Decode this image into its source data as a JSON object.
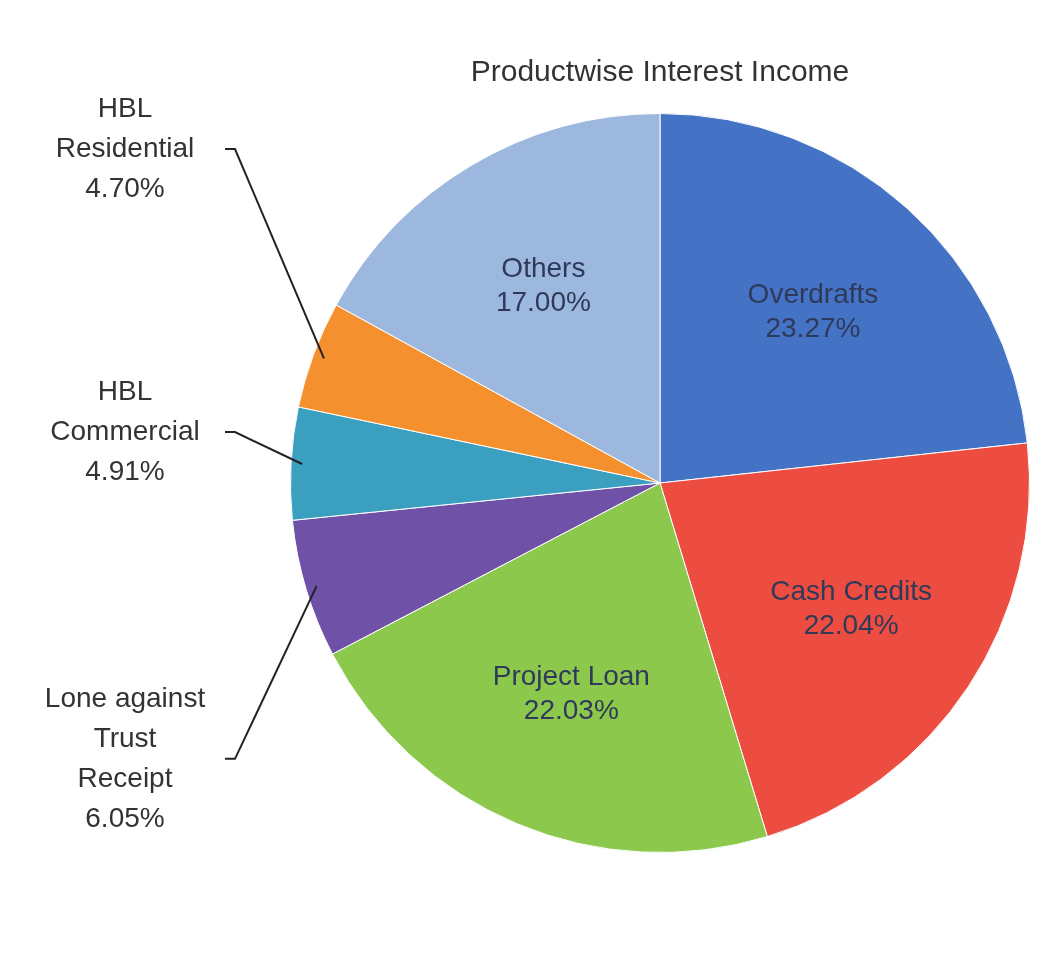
{
  "chart_data": {
    "type": "pie",
    "title": "Productwise Interest Income",
    "categories": [
      "Overdrafts",
      "Cash Credits",
      "Project Loan",
      "Lone against Trust Receipt",
      "HBL Commercial",
      "HBL Residential",
      "Others"
    ],
    "values": [
      23.27,
      22.04,
      22.03,
      6.05,
      4.91,
      4.7,
      17.0
    ],
    "value_labels": [
      "23.27%",
      "22.04%",
      "22.03%",
      "6.05%",
      "4.91%",
      "4.70%",
      "17.00%"
    ],
    "colors": [
      "#4472c4",
      "#ec4d40",
      "#8cc84b",
      "#6f51a8",
      "#3b9fbf",
      "#f5902f",
      "#9db8de"
    ],
    "legend": false
  }
}
